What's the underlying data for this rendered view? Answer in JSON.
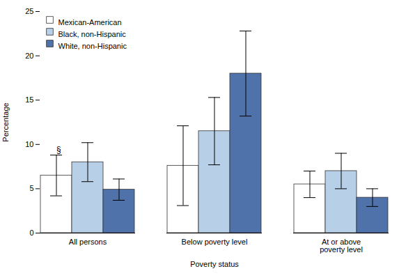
{
  "chart_data": {
    "type": "bar",
    "categories": [
      "All persons",
      "Below poverty level",
      "At or above\npoverty level"
    ],
    "series": [
      {
        "name": "Mexican-American",
        "color": "#ffffff",
        "values": [
          6.5,
          7.6,
          5.5
        ],
        "errors_upper": [
          2.3,
          4.5,
          1.5
        ],
        "errors_lower": [
          2.3,
          4.5,
          1.5
        ]
      },
      {
        "name": "Black, non-Hispanic",
        "color": "#b8cfe8",
        "values": [
          8.0,
          11.5,
          7.0
        ],
        "errors_upper": [
          2.2,
          3.8,
          2.0
        ],
        "errors_lower": [
          2.2,
          3.8,
          2.0
        ]
      },
      {
        "name": "White, non-Hispanic",
        "color": "#4f72aa",
        "values": [
          4.9,
          18.0,
          4.0
        ],
        "errors_upper": [
          1.2,
          4.8,
          1.0
        ],
        "errors_lower": [
          1.2,
          4.8,
          1.0
        ]
      }
    ],
    "xlabel": "Poverty status",
    "ylabel": "Percentage",
    "ylim": [
      0,
      25
    ],
    "yticks": [
      0,
      5,
      10,
      15,
      20,
      25
    ],
    "legend": "upper left",
    "annotations": [
      {
        "text": "§",
        "category": "All persons",
        "series": "Mexican-American"
      }
    ]
  }
}
